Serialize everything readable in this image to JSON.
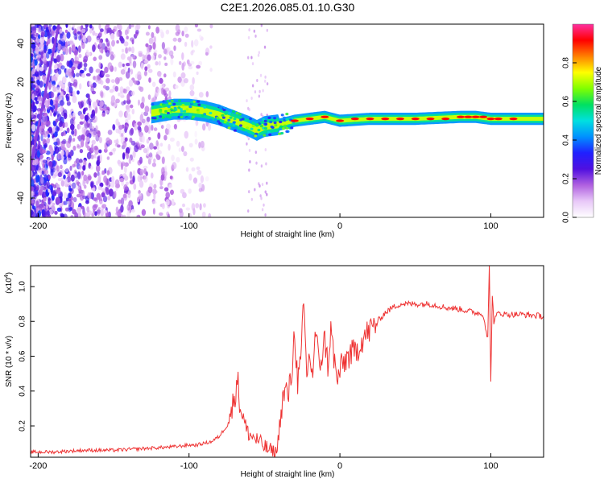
{
  "title": "C2E1.2026.085.01.10.G30",
  "chart_data": [
    {
      "type": "heatmap",
      "title": "C2E1.2026.085.01.10.G30",
      "xlabel": "Height of straight line (km)",
      "ylabel": "Frequency (Hz)",
      "xlim": [
        -205,
        135
      ],
      "ylim": [
        -50,
        50
      ],
      "xticks": [
        -200,
        -100,
        0,
        100
      ],
      "yticks": [
        -40,
        -20,
        0,
        20,
        40
      ],
      "colorbar": {
        "label": "Normalized spectral amplitude",
        "range": [
          0,
          1
        ],
        "ticks": [
          "0.0",
          "0.2",
          "0.4",
          "0.6",
          "0.8"
        ],
        "colormap": [
          "#ffffff",
          "#e8c8f8",
          "#b060e0",
          "#5010e0",
          "#2020ff",
          "#0090ff",
          "#00e0e0",
          "#00e060",
          "#80ff00",
          "#ffff00",
          "#ff8000",
          "#ff0000",
          "#ff30a0"
        ]
      },
      "ridge": {
        "x": [
          -125,
          -110,
          -100,
          -90,
          -80,
          -70,
          -60,
          -55,
          -50,
          -40,
          -30,
          -20,
          -10,
          0,
          20,
          50,
          80,
          90,
          100,
          110,
          135
        ],
        "y": [
          4,
          6,
          6,
          5,
          3,
          0,
          -3,
          -5,
          -3,
          -2,
          0,
          1,
          2,
          0,
          1,
          1,
          2,
          2,
          1,
          1,
          1
        ],
        "peak_x": [
          -30,
          -20,
          -10,
          0,
          10,
          20,
          30,
          40,
          50,
          60,
          70,
          80,
          85,
          90,
          95,
          100,
          105,
          115
        ],
        "peak_y": [
          0,
          1,
          2,
          0,
          1,
          1,
          1,
          1,
          1,
          1,
          1,
          2,
          2,
          2,
          2,
          1,
          1,
          1
        ]
      },
      "streak": {
        "x": [
          -213,
          -185
        ],
        "y": [
          -55,
          55
        ]
      }
    },
    {
      "type": "line",
      "title": "",
      "xlabel": "Height of straight line (km)",
      "ylabel": "SNR (10 * v/v)",
      "yscale_label": "(x10",
      "yscale_exp": "4",
      "yscale_close": ")",
      "xlim": [
        -205,
        135
      ],
      "ylim": [
        0.02,
        1.12
      ],
      "xticks": [
        -200,
        -100,
        0,
        100
      ],
      "yticks": [
        "0.2",
        "0.4",
        "0.6",
        "0.8",
        "1.0"
      ],
      "series": [
        {
          "name": "SNR",
          "color": "#ee3333",
          "x": [
            -205,
            -190,
            -170,
            -150,
            -130,
            -110,
            -100,
            -95,
            -90,
            -85,
            -80,
            -75,
            -72,
            -70,
            -68,
            -66,
            -64,
            -62,
            -60,
            -55,
            -50,
            -45,
            -42,
            -40,
            -38,
            -36,
            -34,
            -32,
            -30,
            -28,
            -26,
            -24,
            -22,
            -20,
            -18,
            -16,
            -14,
            -12,
            -10,
            -8,
            -6,
            -4,
            -2,
            0,
            2,
            5,
            10,
            15,
            20,
            25,
            30,
            35,
            40,
            50,
            60,
            70,
            80,
            90,
            95,
            98,
            99,
            100,
            101,
            102,
            105,
            110,
            120,
            135
          ],
          "y": [
            0.05,
            0.05,
            0.06,
            0.06,
            0.07,
            0.08,
            0.09,
            0.09,
            0.1,
            0.11,
            0.14,
            0.2,
            0.28,
            0.36,
            0.48,
            0.3,
            0.25,
            0.18,
            0.15,
            0.12,
            0.08,
            0.05,
            0.04,
            0.2,
            0.35,
            0.4,
            0.38,
            0.5,
            0.75,
            0.45,
            0.55,
            0.9,
            0.5,
            0.6,
            0.5,
            0.75,
            0.55,
            0.6,
            0.7,
            0.55,
            0.75,
            0.6,
            0.45,
            0.52,
            0.55,
            0.6,
            0.62,
            0.7,
            0.75,
            0.8,
            0.85,
            0.88,
            0.9,
            0.9,
            0.9,
            0.88,
            0.87,
            0.85,
            0.84,
            0.7,
            1.12,
            0.47,
            0.95,
            0.8,
            0.85,
            0.84,
            0.84,
            0.83
          ]
        }
      ]
    }
  ]
}
